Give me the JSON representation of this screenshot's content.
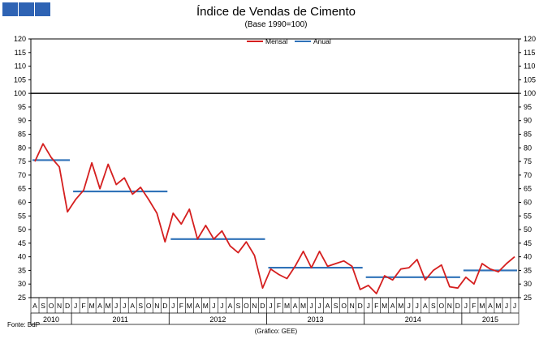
{
  "header": {
    "squares": [
      "logo-square-1",
      "logo-square-2",
      "logo-square-3"
    ]
  },
  "footer": {
    "source": "Fonte: BdP",
    "footnote": "(Gráfico: GEE)"
  },
  "colors": {
    "mensal": "#d51f1f",
    "anual": "#2f72b8",
    "reference": "#000000"
  },
  "chart_data": {
    "type": "line",
    "title": "Índice de Vendas de Cimento",
    "subtitle": "(Base 1990=100)",
    "ylim": [
      25,
      120
    ],
    "yticks": [
      25,
      30,
      35,
      40,
      45,
      50,
      55,
      60,
      65,
      70,
      75,
      80,
      85,
      90,
      95,
      100,
      105,
      110,
      115,
      120
    ],
    "reference_line": 100,
    "legend": {
      "position": "top-center",
      "entries": [
        "Mensal",
        "Anual"
      ]
    },
    "months": [
      "A",
      "S",
      "O",
      "N",
      "D",
      "J",
      "F",
      "M",
      "A",
      "M",
      "J",
      "J",
      "A",
      "S",
      "O",
      "N",
      "D",
      "J",
      "F",
      "M",
      "A",
      "M",
      "J",
      "J",
      "A",
      "S",
      "O",
      "N",
      "D",
      "J",
      "F",
      "M",
      "A",
      "M",
      "J",
      "J",
      "A",
      "S",
      "O",
      "N",
      "D",
      "J",
      "F",
      "M",
      "A",
      "M",
      "J",
      "J",
      "A",
      "S",
      "O",
      "N",
      "D",
      "J",
      "F",
      "M",
      "A",
      "M",
      "J",
      "J"
    ],
    "years": [
      {
        "label": "2010",
        "start": 0,
        "count": 5
      },
      {
        "label": "2011",
        "start": 5,
        "count": 12
      },
      {
        "label": "2012",
        "start": 17,
        "count": 12
      },
      {
        "label": "2013",
        "start": 29,
        "count": 12
      },
      {
        "label": "2014",
        "start": 41,
        "count": 12
      },
      {
        "label": "2015",
        "start": 53,
        "count": 7
      }
    ],
    "series": [
      {
        "name": "Mensal",
        "values": [
          75.0,
          81.5,
          76.5,
          73.0,
          56.5,
          61.0,
          64.5,
          74.5,
          65.0,
          74.0,
          66.5,
          69.0,
          63.0,
          65.5,
          61.0,
          56.0,
          45.5,
          56.0,
          52.0,
          57.5,
          46.5,
          51.5,
          46.5,
          49.5,
          44.0,
          41.5,
          45.5,
          40.5,
          28.5,
          35.5,
          33.5,
          32.0,
          36.5,
          42.0,
          36.0,
          42.0,
          36.5,
          37.5,
          38.5,
          36.5,
          28.0,
          29.5,
          26.5,
          33.0,
          31.5,
          35.5,
          36.0,
          39.0,
          31.5,
          35.0,
          37.0,
          29.0,
          28.5,
          32.5,
          30.0,
          37.5,
          35.5,
          34.5,
          37.5,
          40.0
        ]
      },
      {
        "name": "Anual",
        "segments": [
          {
            "year": "2010",
            "start": 0,
            "end": 4,
            "value": 75.5
          },
          {
            "year": "2011",
            "start": 5,
            "end": 16,
            "value": 64.0
          },
          {
            "year": "2012",
            "start": 17,
            "end": 28,
            "value": 46.5
          },
          {
            "year": "2013",
            "start": 29,
            "end": 40,
            "value": 36.0
          },
          {
            "year": "2014",
            "start": 41,
            "end": 52,
            "value": 32.5
          },
          {
            "year": "2015",
            "start": 53,
            "end": 59,
            "value": 35.0
          }
        ]
      }
    ]
  }
}
